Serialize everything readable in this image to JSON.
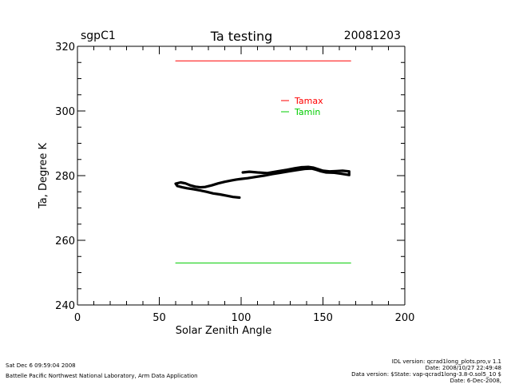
{
  "header": {
    "site": "sgpC1",
    "title": "Ta testing",
    "date": "20081203"
  },
  "footer": {
    "run_time": "Sat Dec  6 09:59:04 2008",
    "lab": "Battelle Pacific Northwest National Laboratory, Arm Data Application",
    "idl_version": "IDL version: qcrad1long_plots.pro,v 1.1",
    "file_date": "Date: 2008/10/27 22:49:48",
    "data_version": "Data version: $State: vap-qcrad1long-3.8-0.sol5_10 $",
    "data_date": "Date: 6-Dec-2008,"
  },
  "chart_data": {
    "type": "line",
    "title": "Ta testing",
    "xlabel": "Solar Zenith Angle",
    "ylabel": "Ta, Degree K",
    "xlim": [
      0,
      200
    ],
    "ylim": [
      240,
      320
    ],
    "xticks": [
      0,
      50,
      100,
      150,
      200
    ],
    "yticks": [
      240,
      260,
      280,
      300,
      320
    ],
    "grid": false,
    "legend_position": "top-right",
    "colors": {
      "axis": "#000000",
      "tamax": "#ff0000",
      "tamin": "#00cc00",
      "data": "#000000"
    },
    "series": [
      {
        "name": "Tamax",
        "color": "#ff0000",
        "x": [
          60,
          167
        ],
        "y": [
          315.5,
          315.5
        ]
      },
      {
        "name": "Tamin",
        "color": "#00cc00",
        "x": [
          60,
          167
        ],
        "y": [
          253,
          253
        ]
      },
      {
        "name": "Ta",
        "color": "#000000",
        "x": [
          101,
          105,
          110,
          116,
          122,
          128,
          133,
          137,
          141,
          144,
          147,
          150,
          154,
          158,
          162,
          166,
          166,
          161,
          157,
          152,
          149,
          146,
          143,
          139,
          134,
          129,
          124,
          119,
          114,
          109,
          104,
          100,
          97,
          94,
          90,
          86,
          82,
          78,
          75,
          72,
          69,
          66,
          63,
          60,
          61,
          64,
          67,
          71,
          75,
          79,
          83,
          87,
          91,
          95,
          99
        ],
        "y": [
          281.0,
          281.2,
          281.0,
          280.8,
          281.3,
          281.8,
          282.3,
          282.6,
          282.7,
          282.5,
          282.0,
          281.5,
          281.3,
          281.4,
          281.5,
          281.3,
          280.2,
          280.6,
          280.9,
          281.0,
          281.3,
          281.8,
          282.2,
          282.1,
          281.7,
          281.3,
          280.9,
          280.5,
          280.0,
          279.6,
          279.2,
          279.0,
          278.8,
          278.5,
          278.1,
          277.6,
          277.0,
          276.5,
          276.4,
          276.6,
          277.0,
          277.6,
          277.9,
          277.5,
          276.8,
          276.4,
          276.1,
          275.8,
          275.4,
          275.0,
          274.5,
          274.2,
          273.8,
          273.4,
          273.2
        ]
      }
    ]
  }
}
